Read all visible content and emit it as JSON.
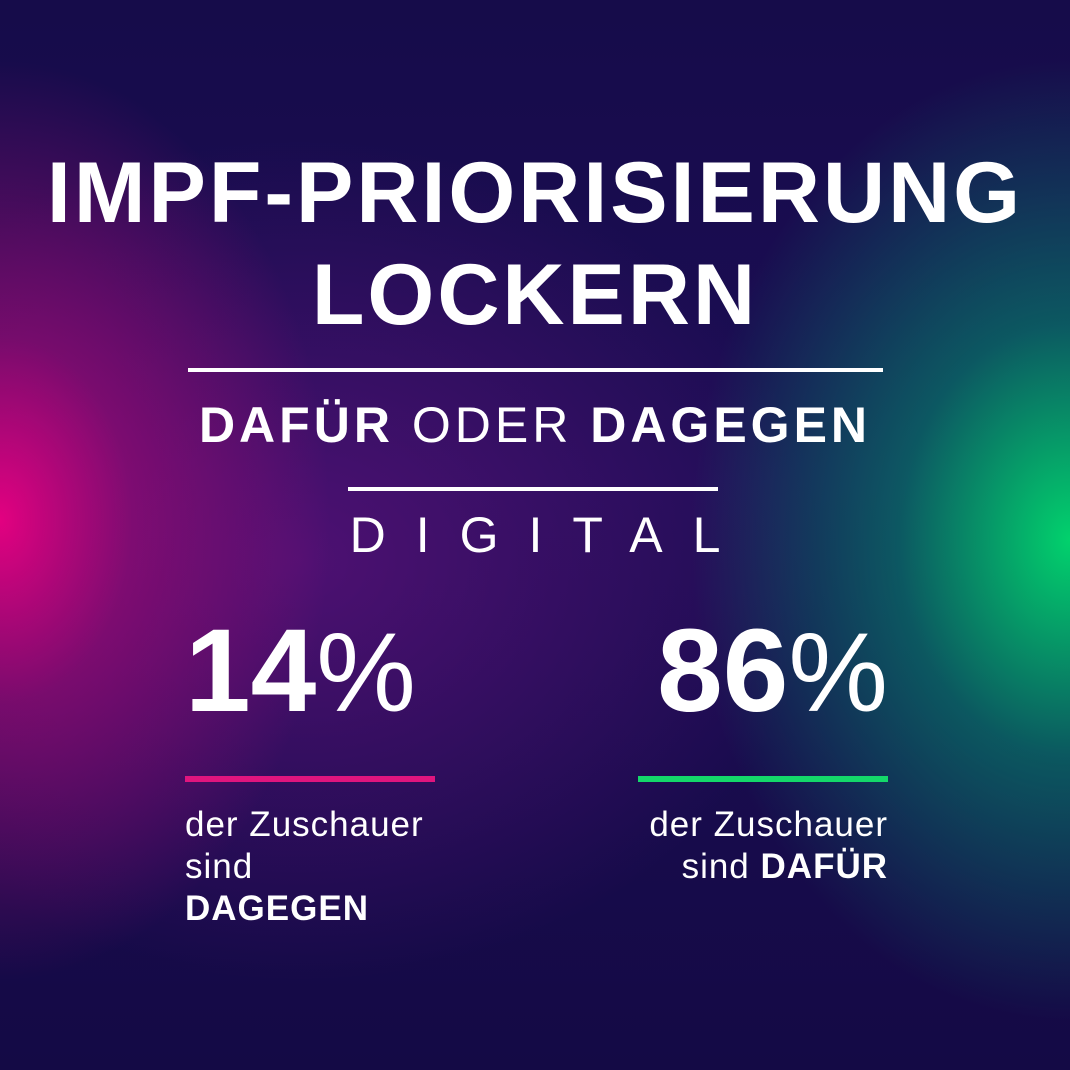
{
  "headline": {
    "line1": "IMPF-PRIORISIERUNG",
    "line2": "LOCKERN"
  },
  "subtitle": {
    "part1": "DAFÜR",
    "part2": "ODER",
    "part3": "DAGEGEN"
  },
  "brand": "DIGITAL",
  "stats": {
    "against": {
      "number": "14",
      "percent_sign": "%",
      "value_percent": 14,
      "caption_line1": "der Zuschauer",
      "caption_prefix": "sind",
      "caption_emphasis": "DAGEGEN"
    },
    "for": {
      "number": "86",
      "percent_sign": "%",
      "value_percent": 86,
      "caption_line1": "der Zuschauer",
      "caption_prefix": "sind",
      "caption_emphasis": "DAFÜR"
    }
  },
  "colors": {
    "against_accent": "#e0157e",
    "for_accent": "#14d86a",
    "text": "#ffffff",
    "background_dark": "#160c4a"
  }
}
